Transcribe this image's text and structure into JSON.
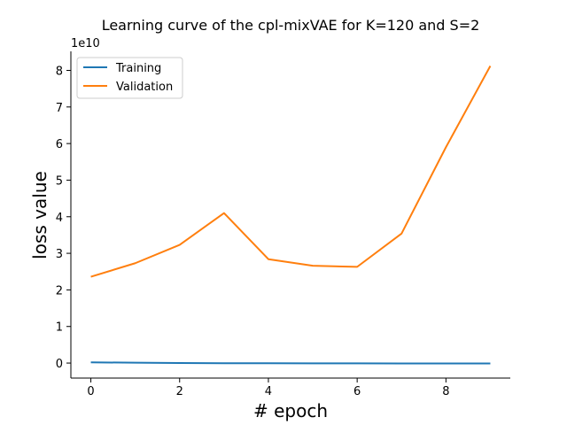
{
  "chart_data": {
    "type": "line",
    "title": "Learning curve of the cpl-mixVAE for K=120 and S=2",
    "xlabel": "# epoch",
    "ylabel": "loss value",
    "y_scale_label": "1e10",
    "x": [
      0,
      1,
      2,
      3,
      4,
      5,
      6,
      7,
      8,
      9
    ],
    "xlim": [
      -0.45,
      9.45
    ],
    "ylim": [
      -0.41,
      8.52
    ],
    "x_ticks": [
      0,
      2,
      4,
      6,
      8
    ],
    "y_ticks": [
      0,
      1,
      2,
      3,
      4,
      5,
      6,
      7,
      8
    ],
    "grid": false,
    "legend_position": "top-left",
    "series": [
      {
        "name": "Training",
        "color": "#1f77b4",
        "values": [
          0.02,
          0.01,
          0.0,
          -0.005,
          -0.005,
          -0.008,
          -0.008,
          -0.01,
          -0.01,
          -0.01
        ]
      },
      {
        "name": "Validation",
        "color": "#ff7f0e",
        "values": [
          2.36,
          2.73,
          3.23,
          4.1,
          2.84,
          2.66,
          2.63,
          3.54,
          5.9,
          8.12
        ]
      }
    ]
  }
}
